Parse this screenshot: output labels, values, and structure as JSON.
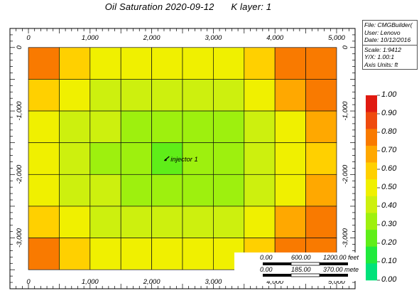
{
  "header": {
    "title_main": "Oil Saturation 2020-09-12",
    "title_layer": "K layer: 1"
  },
  "info_panel": {
    "file": "File: CMGBuilder(",
    "user": "User: Lenovo",
    "date": "Date: 10/12/2016",
    "scale": "Scale: 1:9412",
    "yx": "Y/X: 1.00:1",
    "axis_units": "Axis Units: ft"
  },
  "scale_bar": {
    "feet_labels": [
      "0.00",
      "600.00",
      "1200.00 feet"
    ],
    "meter_labels": [
      "0.00",
      "185.00",
      "370.00 mete"
    ]
  },
  "colors": {
    "ramp": [
      "#00e27a",
      "#20ea3c",
      "#5fee18",
      "#9ef00e",
      "#cdf00e",
      "#f0f000",
      "#ffd000",
      "#ffa800",
      "#f97a00",
      "#ef4a0e",
      "#e01a10"
    ]
  },
  "chart_data": {
    "type": "heatmap",
    "well_label": "injector 1",
    "well": {
      "x": 2250,
      "y": -1750
    },
    "x_ticks": [
      "0",
      "1,000",
      "2,000",
      "3,000",
      "4,000",
      "5,000"
    ],
    "y_ticks": [
      "0",
      "-1,000",
      "-2,000",
      "-3,000"
    ],
    "x_tick_values": [
      0,
      1000,
      2000,
      3000,
      4000,
      5000
    ],
    "y_tick_values": [
      0,
      -1000,
      -2000,
      -3000
    ],
    "grid_x_edges": [
      0,
      500,
      1000,
      1500,
      2000,
      2500,
      3000,
      3500,
      4000,
      4500,
      5000
    ],
    "grid_y_edges": [
      0,
      -500,
      -1000,
      -1500,
      -2000,
      -2500,
      -3000,
      -3500
    ],
    "x_range": [
      -300,
      5300
    ],
    "y_range": [
      300,
      -3800
    ],
    "legend_ticks": [
      "1.00",
      "0.90",
      "0.80",
      "0.70",
      "0.60",
      "0.50",
      "0.40",
      "0.30",
      "0.20",
      "0.10",
      "0.00"
    ],
    "legend_range": [
      0,
      1
    ],
    "values": [
      [
        0.87,
        0.64,
        0.56,
        0.52,
        0.51,
        0.51,
        0.53,
        0.63,
        0.84,
        0.89
      ],
      [
        0.64,
        0.54,
        0.47,
        0.43,
        0.41,
        0.41,
        0.43,
        0.53,
        0.72,
        0.84
      ],
      [
        0.55,
        0.47,
        0.4,
        0.36,
        0.33,
        0.34,
        0.37,
        0.47,
        0.58,
        0.7
      ],
      [
        0.53,
        0.45,
        0.37,
        0.33,
        0.28,
        0.32,
        0.35,
        0.45,
        0.55,
        0.64
      ],
      [
        0.55,
        0.47,
        0.4,
        0.36,
        0.33,
        0.34,
        0.37,
        0.47,
        0.58,
        0.7
      ],
      [
        0.64,
        0.54,
        0.47,
        0.43,
        0.41,
        0.41,
        0.43,
        0.53,
        0.72,
        0.84
      ],
      [
        0.87,
        0.64,
        0.56,
        0.52,
        0.51,
        0.51,
        0.53,
        0.63,
        0.84,
        0.89
      ]
    ]
  }
}
